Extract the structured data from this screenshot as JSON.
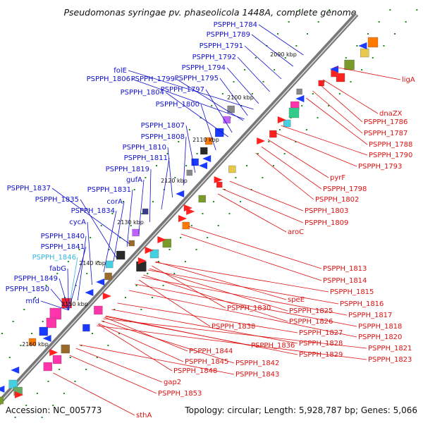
{
  "title": "Pseudomonas syringae pv. phaseolicola 1448A, complete genome",
  "accession": "Accession: NC_005773",
  "summary": "Topology: circular; Length: 5,928,787 bp; Genes: 5,066",
  "colors": {
    "left_label": "#1010cc",
    "left_highlight": "#33b5e0",
    "right_label": "#dd1010",
    "backbone": "#777777",
    "dot": "#1a8a1a"
  },
  "kbp_ticks": [
    "2090 kbp",
    "2100 kbp",
    "2110 kbp",
    "2120 kbp",
    "2130 kbp",
    "2140 kbp",
    "2150 kbp",
    "2160 kbp"
  ],
  "left_labels": [
    "PSPPH_1784",
    "PSPPH_1789",
    "PSPPH_1791",
    "PSPPH_1792",
    "PSPPH_1794",
    "PSPPH_1795",
    "folE",
    "PSPPH_1806",
    "PSPPH_1799",
    "PSPPH_1797",
    "PSPPH_1804",
    "PSPPH_1800",
    "PSPPH_1807",
    "PSPPH_1808",
    "PSPPH_1810",
    "PSPPH_1811",
    "PSPPH_1819",
    "gufA",
    "PSPPH_1837",
    "PSPPH_1831",
    "PSPPH_1835",
    "corA",
    "PSPPH_1834",
    "cycA",
    "PSPPH_1840",
    "PSPPH_1841",
    "PSPPH_1846",
    "fabG",
    "PSPPH_1849",
    "PSPPH_1850",
    "mfd"
  ],
  "right_labels": [
    "ligA",
    "dnaZX",
    "PSPPH_1786",
    "PSPPH_1787",
    "PSPPH_1788",
    "PSPPH_1790",
    "PSPPH_1793",
    "pyrF",
    "PSPPH_1798",
    "PSPPH_1802",
    "PSPPH_1803",
    "PSPPH_1809",
    "aroC",
    "PSPPH_1813",
    "PSPPH_1814",
    "PSPPH_1815",
    "PSPPH_1816",
    "PSPPH_1817",
    "PSPPH_1818",
    "PSPPH_1820",
    "PSPPH_1821",
    "PSPPH_1823",
    "speE",
    "PSPPH_1825",
    "PSPPH_1826",
    "PSPPH_1827",
    "PSPPH_1828",
    "PSPPH_1829",
    "PSPPH_1830",
    "PSPPH_1838",
    "PSPPH_1836",
    "PSPPH_1844",
    "PSPPH_1845",
    "PSPPH_1842",
    "PSPPH_1848",
    "PSPPH_1843",
    "gap2",
    "PSPPH_1853",
    "sthA"
  ],
  "icons": {
    "strand_arrow": "arrow-icon",
    "gene_block": "block-icon"
  }
}
